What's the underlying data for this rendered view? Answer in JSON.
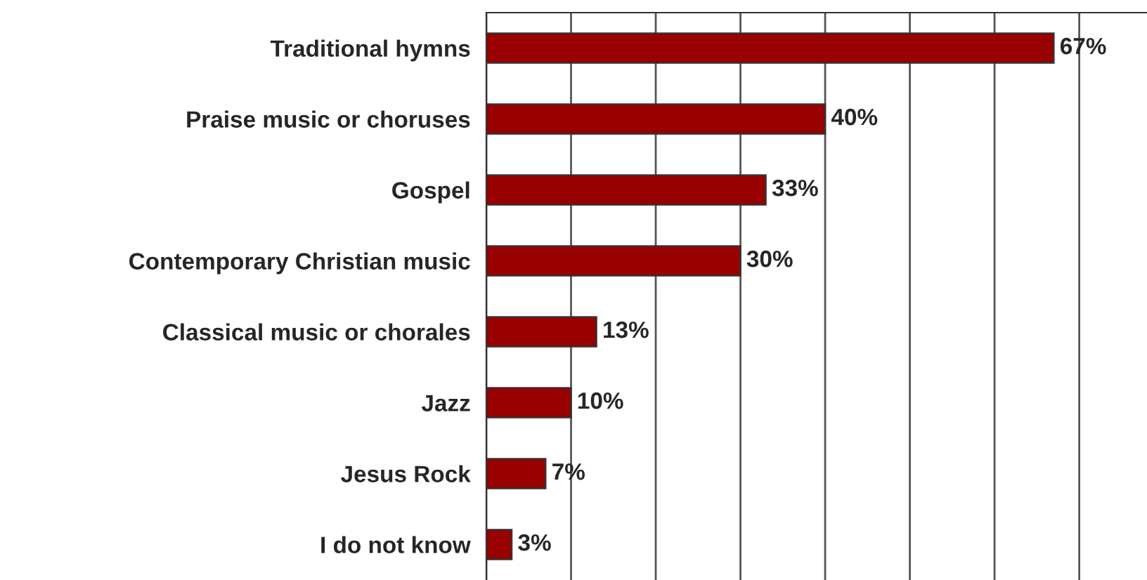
{
  "chart_data": {
    "type": "bar",
    "orientation": "horizontal",
    "categories": [
      "Traditional hymns",
      "Praise music or choruses",
      "Gospel",
      "Contemporary Christian music",
      "Classical music or chorales",
      "Jazz",
      "Jesus Rock",
      "I do not know"
    ],
    "values": [
      67,
      40,
      33,
      30,
      13,
      10,
      7,
      3
    ],
    "value_labels": [
      "67%",
      "40%",
      "33%",
      "30%",
      "13%",
      "10%",
      "7%",
      "3%"
    ],
    "color": "#990000",
    "xlim": [
      0,
      78
    ],
    "xticks": [
      {
        "value": 0,
        "label": null
      },
      {
        "value": 10,
        "label": null
      },
      {
        "value": 20,
        "label": null
      },
      {
        "value": 30,
        "label": null
      },
      {
        "value": 40,
        "label": null
      },
      {
        "value": 50,
        "label": null
      },
      {
        "value": 60,
        "label": null
      },
      {
        "value": 70,
        "label": null
      }
    ],
    "grid": "x"
  }
}
